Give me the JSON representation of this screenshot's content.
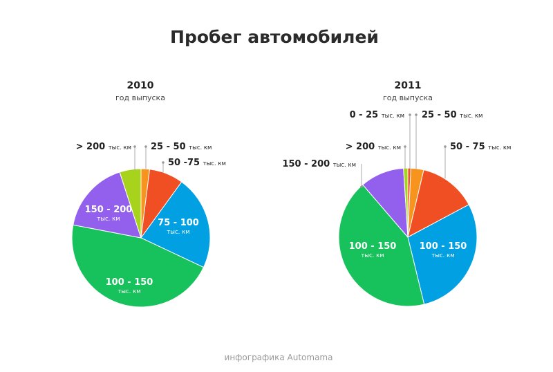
{
  "title": "Пробег автомобилей",
  "footer": "инфографика Automama",
  "chart_data": [
    {
      "type": "pie",
      "title": "2010",
      "subtitle": "год выпуска",
      "unit": "тыс. км",
      "slices": [
        {
          "label": "25 - 50",
          "value": 2,
          "color": "#f7941d"
        },
        {
          "label": "50 -75",
          "value": 8,
          "color": "#f04e23"
        },
        {
          "label": "75 - 100",
          "value": 22,
          "color": "#00a0e3"
        },
        {
          "label": "100 - 150",
          "value": 46,
          "color": "#17c15c"
        },
        {
          "label": "150 - 200",
          "value": 17,
          "color": "#9360ee"
        },
        {
          "label": "> 200",
          "value": 5,
          "color": "#a8d31d"
        }
      ]
    },
    {
      "type": "pie",
      "title": "2011",
      "subtitle": "год выпуска",
      "unit": "тыс. км",
      "slices": [
        {
          "label": "0 - 25",
          "value": 0.7,
          "color": "#f04e23"
        },
        {
          "label": "25 - 50",
          "value": 3,
          "color": "#f7941d"
        },
        {
          "label": "50 - 75",
          "value": 13.5,
          "color": "#f04e23"
        },
        {
          "label": "100 - 150",
          "value": 29,
          "color": "#00a0e3"
        },
        {
          "label": "100 - 150",
          "value": 42.5,
          "color": "#17c15c"
        },
        {
          "label": "150 - 200",
          "value": 10.3,
          "color": "#9360ee"
        },
        {
          "label": "> 200",
          "value": 1,
          "color": "#a8d31d"
        }
      ]
    }
  ]
}
